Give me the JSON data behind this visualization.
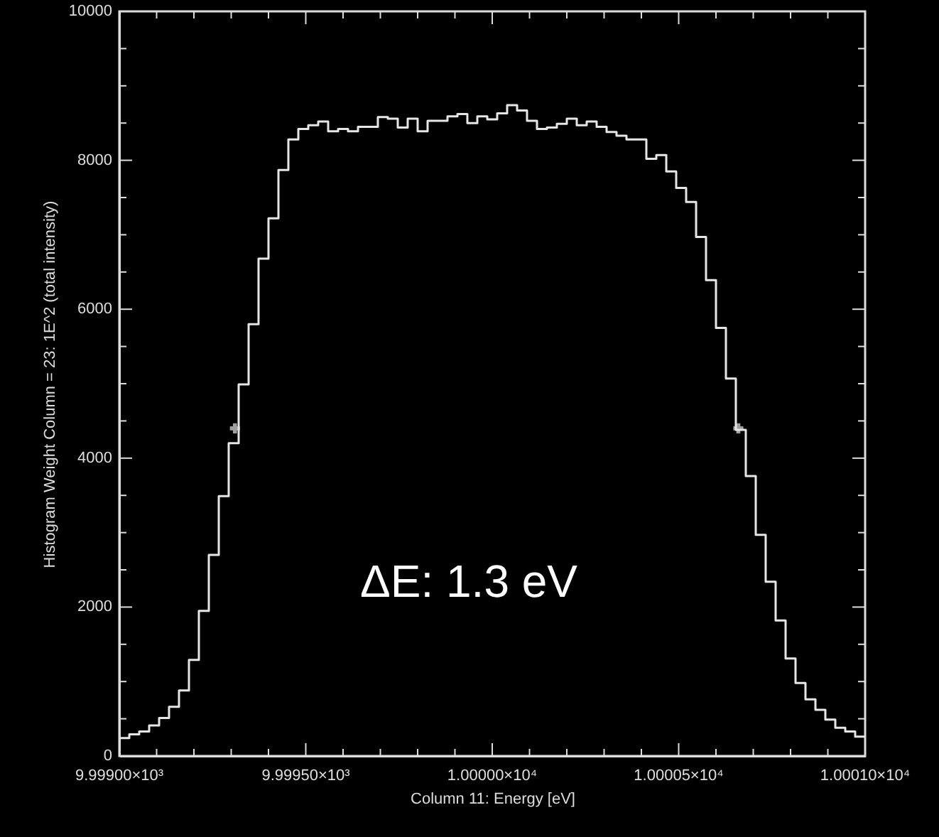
{
  "chart_data": {
    "type": "histogram",
    "xlabel": "Column 11: Energy [eV]",
    "ylabel": "Histogram Weight Column = 23: 1E^2 (total intensity)",
    "annotations": [
      "ΔE: 1.3 eV"
    ],
    "color": "#e6e6e6",
    "bins": [
      9999,
      9999.0267,
      9999.0533,
      9999.08,
      9999.1067,
      9999.1333,
      9999.16,
      9999.1867,
      9999.2133,
      9999.24,
      9999.2667,
      9999.2933,
      9999.32,
      9999.3467,
      9999.3733,
      9999.4,
      9999.4267,
      9999.4533,
      9999.48,
      9999.5067,
      9999.5333,
      9999.56,
      9999.5867,
      9999.6133,
      9999.64,
      9999.6667,
      9999.6933,
      9999.72,
      9999.7467,
      9999.7733,
      9999.8,
      9999.8267,
      9999.8533,
      9999.88,
      9999.9067,
      9999.9333,
      9999.96,
      9999.9867,
      10000.0133,
      10000.04,
      10000.0667,
      10000.0933,
      10000.12,
      10000.1467,
      10000.1733,
      10000.2,
      10000.2267,
      10000.2533,
      10000.28,
      10000.3067,
      10000.3333,
      10000.36,
      10000.3867,
      10000.4133,
      10000.44,
      10000.4667,
      10000.4933,
      10000.52,
      10000.5467,
      10000.5733,
      10000.6,
      10000.6267,
      10000.6533,
      10000.68,
      10000.7067,
      10000.7333,
      10000.76,
      10000.7867,
      10000.8133,
      10000.84,
      10000.8667,
      10000.8933,
      10000.92,
      10000.9467,
      10000.9733,
      10001
    ],
    "values": [
      240,
      290,
      330,
      410,
      510,
      660,
      880,
      1290,
      1950,
      2700,
      3490,
      4200,
      4990,
      5800,
      6680,
      7220,
      7870,
      8280,
      8420,
      8470,
      8520,
      8390,
      8420,
      8390,
      8450,
      8450,
      8580,
      8560,
      8440,
      8560,
      8390,
      8530,
      8530,
      8590,
      8620,
      8500,
      8590,
      8550,
      8630,
      8740,
      8670,
      8530,
      8420,
      8440,
      8490,
      8560,
      8470,
      8520,
      8450,
      8380,
      8330,
      8280,
      8280,
      8020,
      8070,
      7850,
      7630,
      7440,
      6970,
      6390,
      5750,
      5070,
      4380,
      3760,
      2970,
      2340,
      1820,
      1310,
      980,
      760,
      620,
      490,
      380,
      330,
      260
    ],
    "series": [
      {
        "type": "scatter",
        "marker": "cross",
        "color": "#e6e6e6",
        "x": [
          9999.31,
          10000.66
        ],
        "values": [
          4400,
          4400
        ]
      }
    ],
    "xlim": [
      9999,
      10001
    ],
    "xticks": [
      {
        "value": 9999,
        "label": "9.99900×10³"
      },
      {
        "value": 9999.1,
        "label": null
      },
      {
        "value": 9999.2,
        "label": null
      },
      {
        "value": 9999.3,
        "label": null
      },
      {
        "value": 9999.4,
        "label": null
      },
      {
        "value": 9999.5,
        "label": "9.99950×10³"
      },
      {
        "value": 9999.6,
        "label": null
      },
      {
        "value": 9999.7,
        "label": null
      },
      {
        "value": 9999.8,
        "label": null
      },
      {
        "value": 9999.9,
        "label": null
      },
      {
        "value": 10000,
        "label": "1.00000×10⁴"
      },
      {
        "value": 10000.1,
        "label": null
      },
      {
        "value": 10000.2,
        "label": null
      },
      {
        "value": 10000.3,
        "label": null
      },
      {
        "value": 10000.4,
        "label": null
      },
      {
        "value": 10000.5,
        "label": "1.00005×10⁴"
      },
      {
        "value": 10000.6,
        "label": null
      },
      {
        "value": 10000.7,
        "label": null
      },
      {
        "value": 10000.8,
        "label": null
      },
      {
        "value": 10000.9,
        "label": null
      },
      {
        "value": 10001,
        "label": "1.00010×10⁴"
      }
    ],
    "ylim": [
      0,
      10000
    ],
    "yticks": [
      0,
      {
        "value": 500,
        "label": null
      },
      {
        "value": 1000,
        "label": null
      },
      {
        "value": 1500,
        "label": null
      },
      2000,
      {
        "value": 2500,
        "label": null
      },
      {
        "value": 3000,
        "label": null
      },
      {
        "value": 3500,
        "label": null
      },
      4000,
      {
        "value": 4500,
        "label": null
      },
      {
        "value": 5000,
        "label": null
      },
      {
        "value": 5500,
        "label": null
      },
      6000,
      {
        "value": 6500,
        "label": null
      },
      {
        "value": 7000,
        "label": null
      },
      {
        "value": 7500,
        "label": null
      },
      8000,
      {
        "value": 8500,
        "label": null
      },
      {
        "value": 9000,
        "label": null
      },
      {
        "value": 9500,
        "label": null
      },
      10000
    ],
    "grid": false
  }
}
